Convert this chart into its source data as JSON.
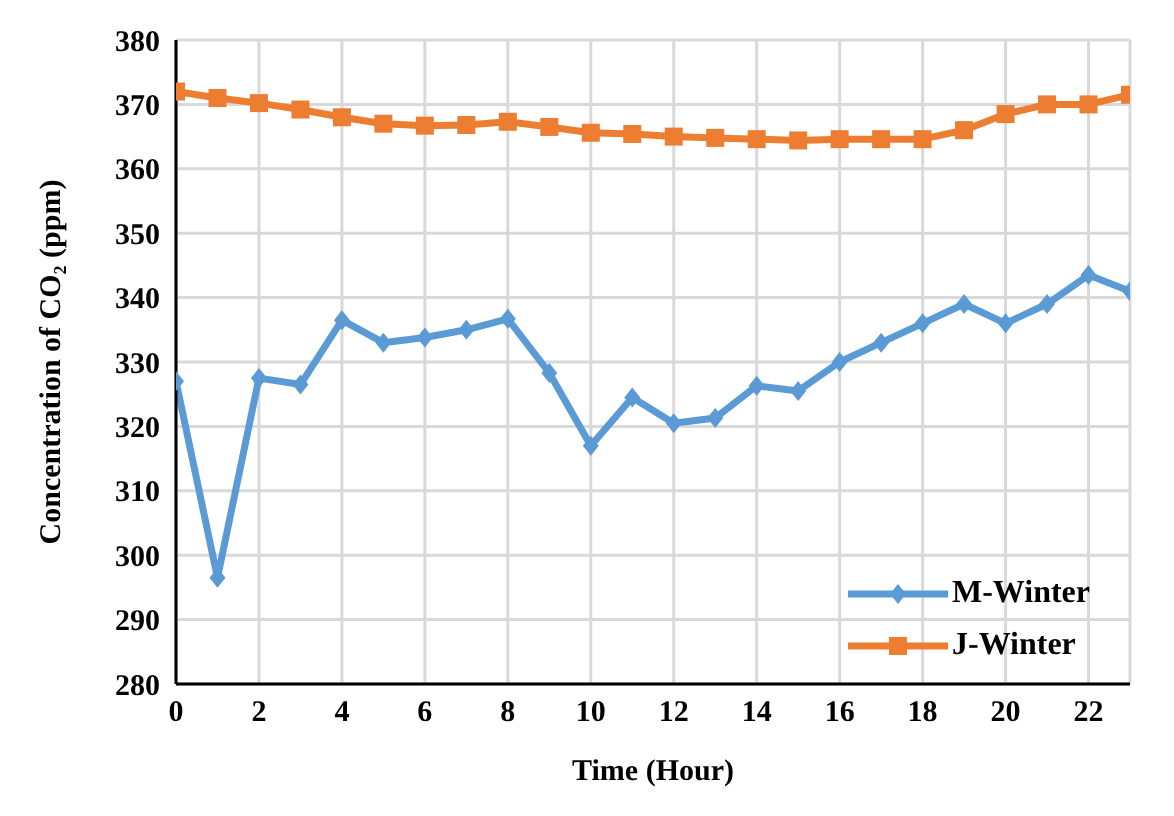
{
  "chart_data": {
    "type": "line",
    "xlabel": "Time (Hour)",
    "ylabel": "Concentration of CO₂  (ppm)",
    "x": [
      0,
      1,
      2,
      3,
      4,
      5,
      6,
      7,
      8,
      9,
      10,
      11,
      12,
      13,
      14,
      15,
      16,
      17,
      18,
      19,
      20,
      21,
      22,
      23
    ],
    "series": [
      {
        "name": "M-Winter",
        "color": "#5b9bd5",
        "marker": "diamond",
        "values": [
          327,
          296.5,
          327.5,
          326.5,
          336.5,
          333,
          333.8,
          335,
          336.7,
          328.3,
          317,
          324.5,
          320.5,
          321.3,
          326.3,
          325.5,
          330,
          333,
          336,
          339,
          336,
          339,
          343.5,
          341
        ]
      },
      {
        "name": "J-Winter",
        "color": "#ed7d31",
        "marker": "square",
        "values": [
          372,
          371,
          370.2,
          369.2,
          368,
          367,
          366.7,
          366.8,
          367.3,
          366.5,
          365.6,
          365.4,
          365,
          364.8,
          364.6,
          364.4,
          364.6,
          364.6,
          364.6,
          366,
          368.5,
          370,
          370,
          371.5
        ]
      }
    ],
    "xlim": [
      0,
      23
    ],
    "xticks": [
      0,
      2,
      4,
      6,
      8,
      10,
      12,
      14,
      16,
      18,
      20,
      22
    ],
    "ylim": [
      280,
      380
    ],
    "yticks": [
      280,
      290,
      300,
      310,
      320,
      330,
      340,
      350,
      360,
      370,
      380
    ],
    "grid": true,
    "legend": "bottom right",
    "line_style": "solid"
  }
}
